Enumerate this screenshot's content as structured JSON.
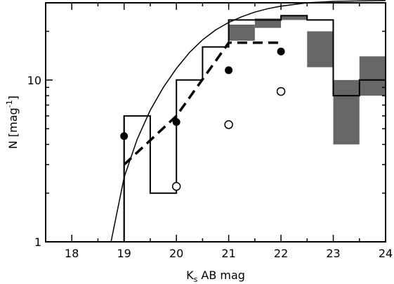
{
  "chart_data": {
    "type": "line",
    "xlabel": "K",
    "xlabel_subscript": "s",
    "xlabel_suffix": " AB mag",
    "ylabel": "N [mag",
    "ylabel_superscript": "-1",
    "ylabel_suffix": "]",
    "xlim": [
      17.5,
      24
    ],
    "ylim": [
      1,
      30
    ],
    "yscale": "log",
    "grid": false,
    "xticks": [
      18,
      19,
      20,
      21,
      22,
      23,
      24
    ],
    "xtick_labels": [
      "18",
      "19",
      "20",
      "21",
      "22",
      "23",
      "24"
    ],
    "yticks": [
      1,
      10
    ],
    "ytick_labels": [
      "1",
      "10"
    ],
    "series": [
      {
        "style": "thin-solid-curve",
        "x": [
          18.75,
          19.0,
          19.25,
          19.5,
          19.75,
          20.0,
          20.25,
          20.5,
          20.75,
          21.0,
          21.25,
          21.5,
          21.75,
          22.0,
          22.5,
          23.0,
          24.0
        ],
        "y": [
          1.0,
          2.5,
          4.3,
          6.5,
          9.0,
          11.8,
          14.8,
          17.7,
          20.4,
          22.7,
          24.6,
          26.3,
          27.6,
          28.6,
          30.0,
          30.6,
          31.0
        ]
      },
      {
        "style": "histogram-step",
        "bin_edges": [
          17.5,
          19.0,
          19.5,
          20.0,
          20.5,
          21.0,
          21.5,
          22.0,
          22.5,
          23.0,
          23.5,
          24.0
        ],
        "counts": [
          1.0,
          6.0,
          2.0,
          10.0,
          16.0,
          23.5,
          23.5,
          25.0,
          23.5,
          8.0,
          10.0
        ]
      },
      {
        "style": "gray-range-boxes",
        "bin_edges": [
          21.0,
          21.5,
          22.0,
          22.5,
          23.0,
          23.5,
          24.0
        ],
        "low": [
          17.5,
          21.0,
          23.5,
          12.0,
          4.0,
          8.0
        ],
        "high": [
          22.0,
          24.0,
          25.0,
          20.0,
          10.0,
          14.0
        ]
      },
      {
        "style": "thick-dashed-line",
        "x": [
          19.0,
          20.0,
          21.0,
          22.0
        ],
        "y": [
          3.0,
          6.0,
          17.0,
          17.0
        ]
      },
      {
        "style": "filled-circles",
        "x": [
          19.0,
          20.0,
          21.0,
          22.0
        ],
        "y": [
          4.5,
          5.5,
          11.5,
          15.0
        ]
      },
      {
        "style": "open-circles",
        "x": [
          20.0,
          21.0,
          22.0
        ],
        "y": [
          2.2,
          5.3,
          8.5
        ]
      }
    ]
  }
}
